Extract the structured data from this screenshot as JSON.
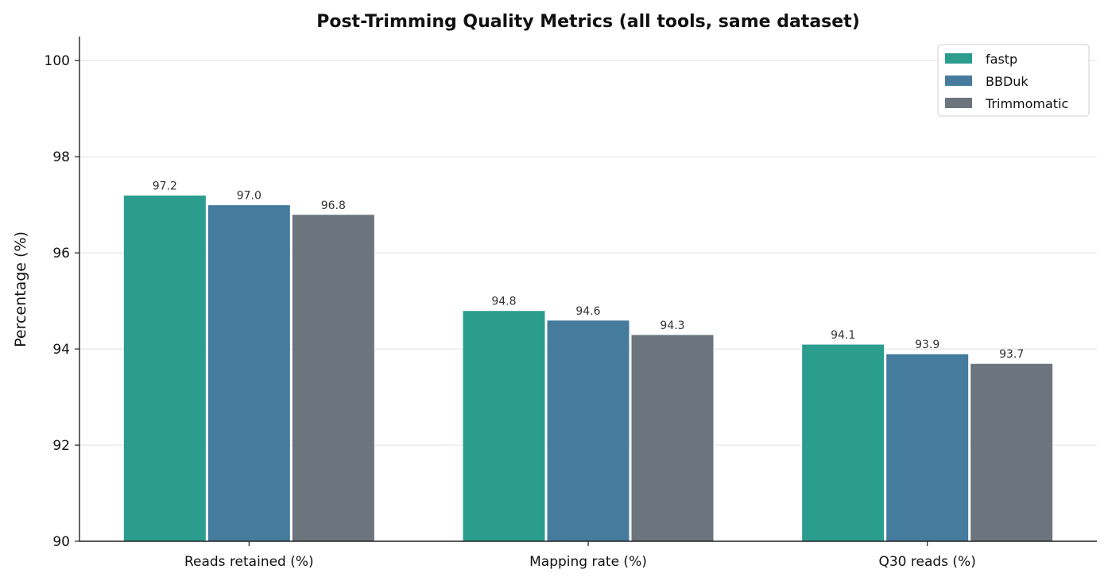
{
  "chart_data": {
    "type": "bar",
    "title": "Post-Trimming Quality Metrics (all tools, same dataset)",
    "xlabel": "",
    "ylabel": "Percentage (%)",
    "categories": [
      "Reads retained (%)",
      "Mapping rate (%)",
      "Q30 reads (%)"
    ],
    "series": [
      {
        "name": "fastp",
        "values": [
          97.2,
          94.8,
          94.1
        ],
        "color": "#2a9d8f"
      },
      {
        "name": "BBDuk",
        "values": [
          97.0,
          94.6,
          93.9
        ],
        "color": "#457b9d"
      },
      {
        "name": "Trimmomatic",
        "values": [
          96.8,
          94.3,
          93.7
        ],
        "color": "#6c757d"
      }
    ],
    "data_labels": [
      [
        "97.2",
        "94.8",
        "94.1"
      ],
      [
        "97.0",
        "94.6",
        "93.9"
      ],
      [
        "96.8",
        "94.3",
        "93.7"
      ]
    ],
    "ylim": [
      90,
      100.5
    ],
    "yticks": [
      90,
      92,
      94,
      96,
      98,
      100
    ],
    "grid": "horizontal",
    "legend_position": "top-right"
  }
}
